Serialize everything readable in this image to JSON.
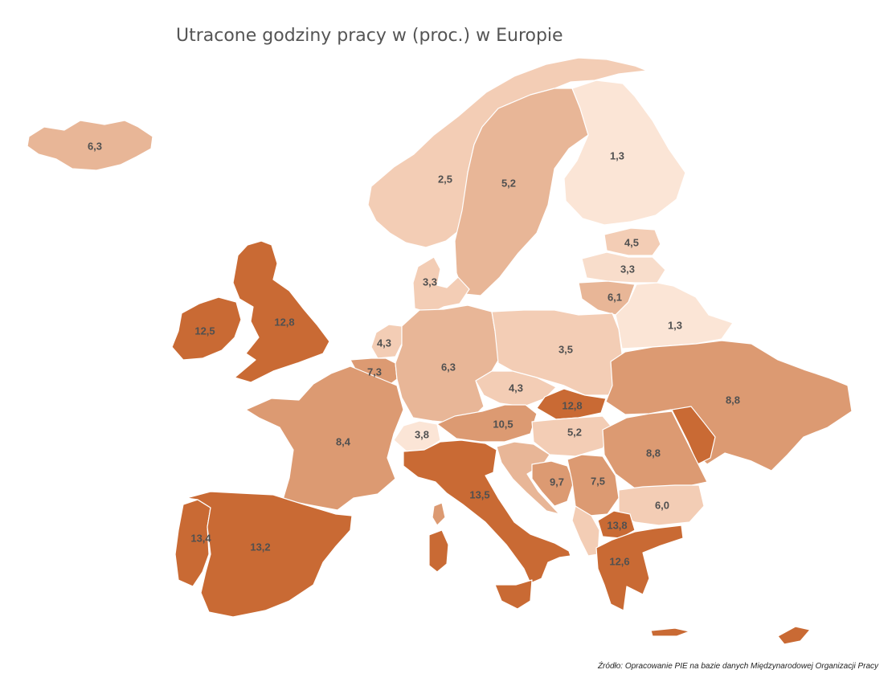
{
  "title": "Utracone godziny pracy w (proc.) w Europie",
  "source": "Źródło: Opracowanie PIE na bazie danych Międzynarodowej Organizacji Pracy",
  "colors": {
    "lightest": "#fbe5d6",
    "light": "#f3cdb5",
    "mid": "#e8b697",
    "midDark": "#dc9a72",
    "dark": "#c96a34"
  },
  "chart_data": {
    "type": "choropleth",
    "regions": [
      {
        "id": "iceland",
        "value": "6,3"
      },
      {
        "id": "norway",
        "value": "2,5"
      },
      {
        "id": "sweden",
        "value": "5,2"
      },
      {
        "id": "finland",
        "value": "1,3"
      },
      {
        "id": "estonia",
        "value": "4,5"
      },
      {
        "id": "latvia",
        "value": "3,3"
      },
      {
        "id": "lithuania",
        "value": "6,1"
      },
      {
        "id": "belarus",
        "value": "1,3"
      },
      {
        "id": "denmark",
        "value": "3,3"
      },
      {
        "id": "ireland",
        "value": "12,5"
      },
      {
        "id": "united-kingdom",
        "value": "12,8"
      },
      {
        "id": "netherlands",
        "value": "4,3"
      },
      {
        "id": "belgium",
        "value": "7,3"
      },
      {
        "id": "germany",
        "value": "6,3"
      },
      {
        "id": "poland",
        "value": "3,5"
      },
      {
        "id": "czechia",
        "value": "4,3"
      },
      {
        "id": "slovakia",
        "value": "12,8"
      },
      {
        "id": "ukraine",
        "value": "8,8"
      },
      {
        "id": "france",
        "value": "8,4"
      },
      {
        "id": "switzerland",
        "value": "3,8"
      },
      {
        "id": "austria",
        "value": "10,5"
      },
      {
        "id": "hungary",
        "value": "5,2"
      },
      {
        "id": "romania",
        "value": "8,8"
      },
      {
        "id": "italy",
        "value": "13,5"
      },
      {
        "id": "bosnia",
        "value": "9,7"
      },
      {
        "id": "serbia",
        "value": "7,5"
      },
      {
        "id": "bulgaria",
        "value": "6,0"
      },
      {
        "id": "north-macedonia",
        "value": "13,8"
      },
      {
        "id": "greece",
        "value": "12,6"
      },
      {
        "id": "portugal",
        "value": "13,4"
      },
      {
        "id": "spain",
        "value": "13,2"
      }
    ]
  }
}
